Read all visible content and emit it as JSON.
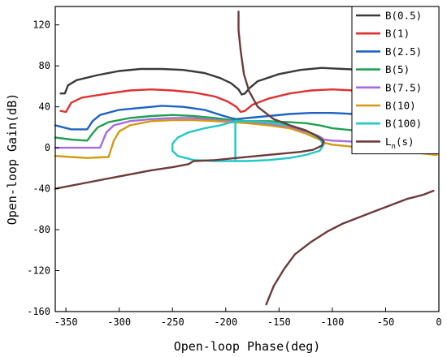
{
  "chart_data": {
    "type": "line",
    "xlabel": "Open-loop Phase(deg)",
    "ylabel": "Open-loop Gain(dB)",
    "xlim": [
      -360,
      0
    ],
    "ylim": [
      -160,
      138
    ],
    "xticks": [
      -350,
      -300,
      -250,
      -200,
      -150,
      -100,
      -50,
      0
    ],
    "yticks": [
      120,
      80,
      40,
      0,
      -40,
      -80,
      -120,
      -160
    ],
    "grid": false,
    "legend_position": "top-right",
    "series": [
      {
        "name": "B(0.5)",
        "label_main": "B(0.5)",
        "label_sub": "",
        "color": "#3a3a3a",
        "segments": [
          [
            [
              -355,
              53
            ],
            [
              -351,
              53
            ],
            [
              -348,
              61
            ],
            [
              -340,
              66
            ],
            [
              -320,
              71
            ],
            [
              -300,
              75
            ],
            [
              -280,
              77
            ],
            [
              -260,
              77
            ],
            [
              -240,
              76
            ],
            [
              -220,
              73
            ],
            [
              -205,
              68
            ],
            [
              -195,
              63
            ],
            [
              -188,
              57
            ],
            [
              -185,
              52
            ],
            [
              -182,
              53
            ],
            [
              -178,
              58
            ],
            [
              -170,
              65
            ],
            [
              -150,
              72
            ],
            [
              -130,
              76
            ],
            [
              -110,
              78
            ],
            [
              -90,
              77
            ],
            [
              -70,
              76
            ],
            [
              -50,
              73
            ],
            [
              -30,
              67
            ],
            [
              -15,
              63
            ],
            [
              -8,
              61
            ],
            [
              -5,
              56
            ],
            [
              -2,
              55
            ]
          ]
        ]
      },
      {
        "name": "B(1)",
        "label_main": "B(1)",
        "label_sub": "",
        "color": "#e03030",
        "segments": [
          [
            [
              -355,
              36
            ],
            [
              -350,
              35
            ],
            [
              -345,
              44
            ],
            [
              -335,
              49
            ],
            [
              -310,
              53
            ],
            [
              -290,
              56
            ],
            [
              -270,
              57
            ],
            [
              -250,
              56
            ],
            [
              -230,
              54
            ],
            [
              -210,
              50
            ],
            [
              -198,
              45
            ],
            [
              -190,
              40
            ],
            [
              -186,
              35
            ],
            [
              -182,
              36
            ],
            [
              -175,
              42
            ],
            [
              -160,
              48
            ],
            [
              -140,
              53
            ],
            [
              -120,
              56
            ],
            [
              -100,
              57
            ],
            [
              -80,
              56
            ],
            [
              -60,
              53
            ],
            [
              -40,
              48
            ],
            [
              -25,
              44
            ],
            [
              -15,
              41
            ],
            [
              -10,
              39
            ],
            [
              -6,
              34
            ],
            [
              -2,
              34
            ]
          ]
        ]
      },
      {
        "name": "B(2.5)",
        "label_main": "B(2.5)",
        "label_sub": "",
        "color": "#1f63c2",
        "segments": [
          [
            [
              -360,
              22
            ],
            [
              -345,
              18
            ],
            [
              -330,
              18
            ],
            [
              -325,
              26
            ],
            [
              -318,
              32
            ],
            [
              -300,
              37
            ],
            [
              -280,
              39
            ],
            [
              -260,
              41
            ],
            [
              -240,
              40
            ],
            [
              -220,
              37
            ],
            [
              -205,
              32
            ],
            [
              -195,
              29
            ],
            [
              -190,
              28
            ],
            [
              -180,
              29
            ],
            [
              -160,
              31
            ],
            [
              -140,
              33
            ],
            [
              -120,
              34
            ],
            [
              -100,
              34
            ],
            [
              -80,
              33
            ],
            [
              -60,
              31
            ],
            [
              -40,
              28
            ],
            [
              -25,
              24
            ],
            [
              -15,
              22
            ],
            [
              -8,
              20
            ],
            [
              -2,
              19
            ]
          ]
        ]
      },
      {
        "name": "B(5)",
        "label_main": "B(5)",
        "label_sub": "",
        "color": "#20a050",
        "segments": [
          [
            [
              -360,
              10
            ],
            [
              -345,
              8
            ],
            [
              -330,
              7
            ],
            [
              -325,
              14
            ],
            [
              -320,
              20
            ],
            [
              -310,
              25
            ],
            [
              -290,
              29
            ],
            [
              -270,
              31
            ],
            [
              -250,
              32
            ],
            [
              -230,
              31
            ],
            [
              -210,
              29
            ],
            [
              -195,
              27
            ],
            [
              -180,
              26
            ],
            [
              -160,
              26
            ],
            [
              -140,
              25
            ],
            [
              -125,
              24
            ],
            [
              -112,
              22
            ],
            [
              -100,
              19
            ],
            [
              -80,
              17
            ],
            [
              -60,
              15
            ],
            [
              -40,
              14
            ],
            [
              -20,
              12
            ],
            [
              -2,
              11
            ]
          ]
        ]
      },
      {
        "name": "B(7.5)",
        "label_main": "B(7.5)",
        "label_sub": "",
        "color": "#a66ae0",
        "segments": [
          [
            [
              -360,
              0
            ],
            [
              -345,
              0
            ],
            [
              -325,
              0
            ],
            [
              -318,
              0
            ],
            [
              -312,
              15
            ],
            [
              -305,
              22
            ],
            [
              -290,
              26
            ],
            [
              -270,
              28
            ],
            [
              -250,
              29
            ],
            [
              -230,
              29
            ],
            [
              -210,
              27
            ],
            [
              -195,
              26
            ],
            [
              -180,
              25
            ],
            [
              -160,
              23
            ],
            [
              -140,
              20
            ],
            [
              -125,
              16
            ],
            [
              -112,
              11
            ],
            [
              -108,
              8
            ],
            [
              -100,
              7
            ],
            [
              -80,
              6
            ],
            [
              -60,
              4
            ],
            [
              -40,
              2
            ],
            [
              -20,
              0
            ],
            [
              -2,
              -1
            ]
          ]
        ]
      },
      {
        "name": "B(10)",
        "label_main": "B(10)",
        "label_sub": "",
        "color": "#d29a10",
        "segments": [
          [
            [
              -360,
              -8
            ],
            [
              -345,
              -9
            ],
            [
              -330,
              -10
            ],
            [
              -310,
              -9
            ],
            [
              -305,
              7
            ],
            [
              -300,
              16
            ],
            [
              -290,
              22
            ],
            [
              -270,
              26
            ],
            [
              -250,
              27
            ],
            [
              -230,
              27
            ],
            [
              -210,
              26
            ],
            [
              -195,
              25
            ],
            [
              -180,
              24
            ],
            [
              -160,
              22
            ],
            [
              -140,
              19
            ],
            [
              -125,
              14
            ],
            [
              -112,
              8
            ],
            [
              -108,
              5
            ],
            [
              -100,
              3
            ],
            [
              -80,
              1
            ],
            [
              -60,
              -1
            ],
            [
              -40,
              -3
            ],
            [
              -20,
              -5
            ],
            [
              -2,
              -7
            ]
          ]
        ]
      },
      {
        "name": "B(100)",
        "label_main": "B(100)",
        "label_sub": "",
        "color": "#20c8c8",
        "segments": [
          [
            [
              -191,
              26
            ],
            [
              -180,
              26
            ],
            [
              -160,
              25
            ],
            [
              -140,
              22
            ],
            [
              -125,
              17
            ],
            [
              -113,
              10
            ],
            [
              -108,
              3
            ],
            [
              -112,
              -3
            ],
            [
              -125,
              -7
            ],
            [
              -140,
              -10
            ],
            [
              -160,
              -12
            ],
            [
              -180,
              -13
            ],
            [
              -191,
              -13
            ],
            [
              -210,
              -13
            ],
            [
              -230,
              -12
            ],
            [
              -245,
              -8
            ],
            [
              -250,
              -3
            ],
            [
              -250,
              4
            ],
            [
              -245,
              10
            ],
            [
              -235,
              15
            ],
            [
              -220,
              19
            ],
            [
              -205,
              22
            ],
            [
              -191,
              26
            ]
          ],
          [
            [
              -191,
              26
            ],
            [
              -191,
              -13
            ]
          ]
        ]
      },
      {
        "name": "Ln(s)",
        "label_main": "L",
        "label_sub": "n",
        "label_tail": "(s)",
        "color": "#6b3b3b",
        "segments": [
          [
            [
              -360,
              -40
            ],
            [
              -330,
              -34
            ],
            [
              -300,
              -28
            ],
            [
              -270,
              -22
            ],
            [
              -250,
              -19
            ],
            [
              -235,
              -16
            ],
            [
              -230,
              -13
            ],
            [
              -210,
              -12
            ],
            [
              -190,
              -10
            ],
            [
              -170,
              -8
            ],
            [
              -150,
              -6
            ],
            [
              -130,
              -4
            ],
            [
              -118,
              -2
            ],
            [
              -110,
              2
            ],
            [
              -108,
              6
            ],
            [
              -110,
              8
            ],
            [
              -115,
              12
            ],
            [
              -125,
              17
            ],
            [
              -140,
              22
            ],
            [
              -155,
              28
            ],
            [
              -170,
              40
            ],
            [
              -178,
              55
            ],
            [
              -183,
              72
            ],
            [
              -186,
              95
            ],
            [
              -188,
              115
            ],
            [
              -188,
              133
            ]
          ],
          [
            [
              -162,
              -153
            ],
            [
              -155,
              -135
            ],
            [
              -145,
              -118
            ],
            [
              -135,
              -104
            ],
            [
              -120,
              -92
            ],
            [
              -105,
              -82
            ],
            [
              -90,
              -74
            ],
            [
              -75,
              -68
            ],
            [
              -60,
              -62
            ],
            [
              -45,
              -56
            ],
            [
              -30,
              -50
            ],
            [
              -15,
              -46
            ],
            [
              -5,
              -42
            ]
          ]
        ]
      }
    ]
  }
}
